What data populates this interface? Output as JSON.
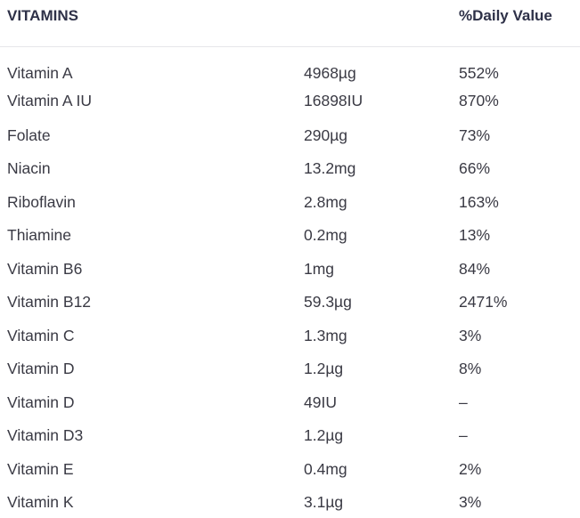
{
  "table": {
    "header": [
      "VITAMINS",
      "%Daily Value"
    ],
    "rows": [
      [
        "Vitamin A",
        "4968µg",
        "552%"
      ],
      [
        "Vitamin A IU",
        "16898IU",
        "870%"
      ],
      [
        "Folate",
        "290µg",
        "73%"
      ],
      [
        "Niacin",
        "13.2mg",
        "66%"
      ],
      [
        "Riboflavin",
        "2.8mg",
        "163%"
      ],
      [
        "Thiamine",
        "0.2mg",
        "13%"
      ],
      [
        "Vitamin B6",
        "1mg",
        "84%"
      ],
      [
        "Vitamin B12",
        "59.3µg",
        "2471%"
      ],
      [
        "Vitamin C",
        "1.3mg",
        "3%"
      ],
      [
        "Vitamin D",
        "1.2µg",
        "8%"
      ],
      [
        "Vitamin D",
        "49IU",
        "–"
      ],
      [
        "Vitamin D3",
        "1.2µg",
        "–"
      ],
      [
        "Vitamin E",
        "0.4mg",
        "2%"
      ],
      [
        "Vitamin K",
        "3.1µg",
        "3%"
      ]
    ]
  }
}
